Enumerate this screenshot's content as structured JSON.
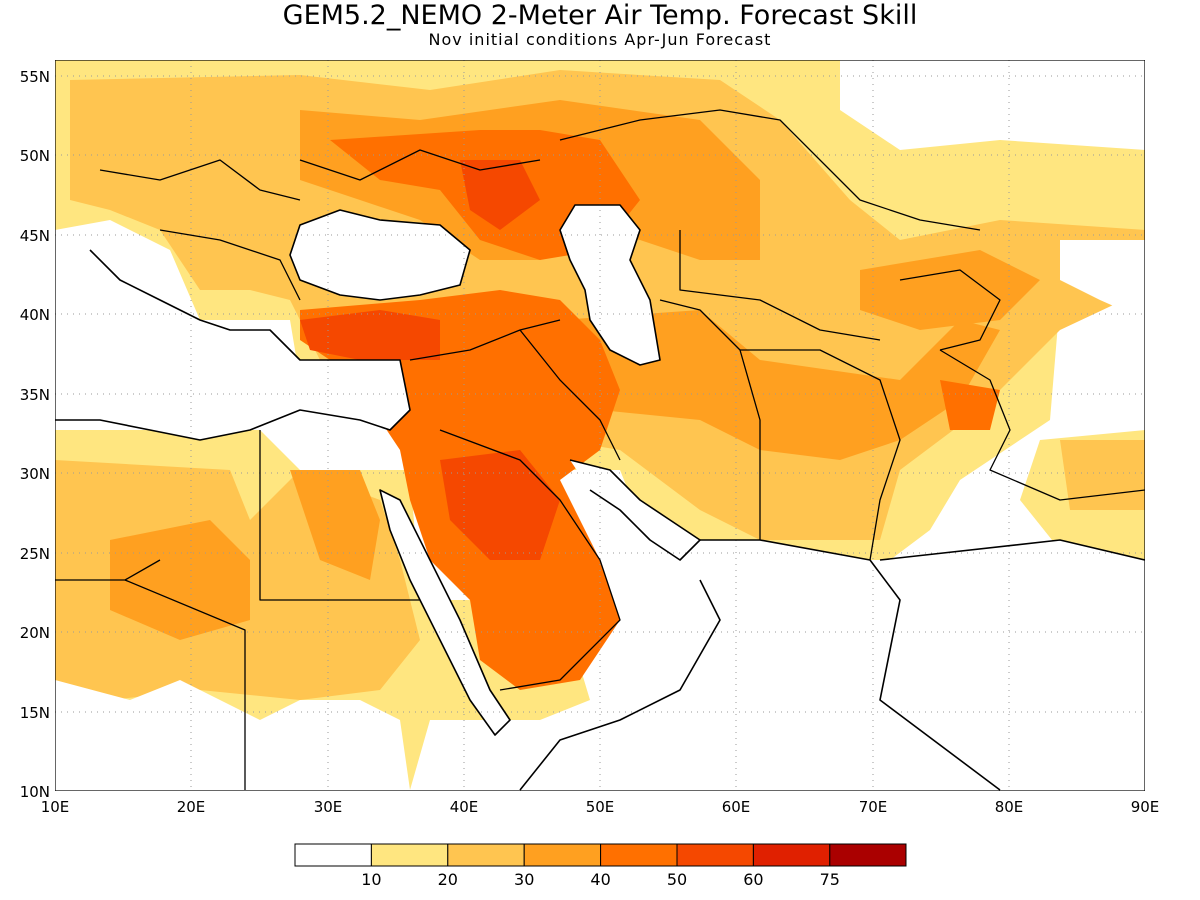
{
  "title": "GEM5.2_NEMO 2-Meter Air Temp. Forecast Skill",
  "subtitle": "Nov initial conditions   Apr-Jun Forecast",
  "map": {
    "lon_range": [
      10,
      90
    ],
    "lat_range": [
      10,
      56
    ],
    "lon_ticks": [
      {
        "value": 10,
        "label": "10E"
      },
      {
        "value": 20,
        "label": "20E"
      },
      {
        "value": 30,
        "label": "30E"
      },
      {
        "value": 40,
        "label": "40E"
      },
      {
        "value": 50,
        "label": "50E"
      },
      {
        "value": 60,
        "label": "60E"
      },
      {
        "value": 70,
        "label": "70E"
      },
      {
        "value": 80,
        "label": "80E"
      },
      {
        "value": 90,
        "label": "90E"
      }
    ],
    "lat_ticks": [
      {
        "value": 10,
        "label": "10N"
      },
      {
        "value": 15,
        "label": "15N"
      },
      {
        "value": 20,
        "label": "20N"
      },
      {
        "value": 25,
        "label": "25N"
      },
      {
        "value": 30,
        "label": "30N"
      },
      {
        "value": 35,
        "label": "35N"
      },
      {
        "value": 40,
        "label": "40N"
      },
      {
        "value": 45,
        "label": "45N"
      },
      {
        "value": 50,
        "label": "50N"
      },
      {
        "value": 55,
        "label": "55N"
      }
    ],
    "grid": "dotted"
  },
  "colorbar": {
    "colors": [
      "#ffffff",
      "#ffe680",
      "#ffc550",
      "#ffa020",
      "#ff7000",
      "#f54800",
      "#e02000",
      "#aa0000"
    ],
    "labels": [
      "10",
      "20",
      "30",
      "40",
      "50",
      "60",
      "75"
    ]
  }
}
